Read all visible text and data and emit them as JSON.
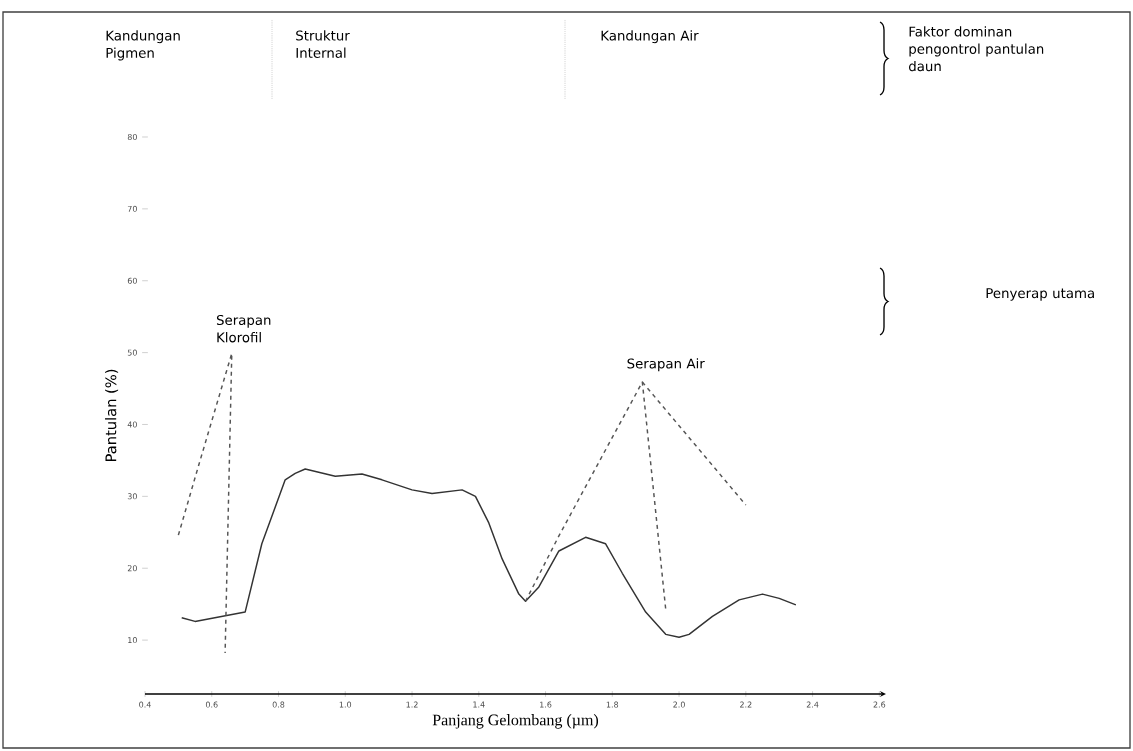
{
  "chart_data": {
    "type": "line",
    "xlabel": "Panjang Gelombang (µm)",
    "ylabel": "Pantulan (%)",
    "xlim": [
      0.4,
      2.62
    ],
    "ylim": [
      2.5,
      80
    ],
    "xticks": [
      0.4,
      0.6,
      0.8,
      {
        "value": 1.0,
        "label": "1.0"
      },
      1.2,
      1.4,
      1.6,
      1.8,
      {
        "value": 2.0,
        "label": "2.0"
      },
      2.2,
      2.4,
      2.6
    ],
    "yticks": [
      10,
      20,
      30,
      40,
      50,
      60,
      70,
      80
    ],
    "annotations": [
      "Kandungan Pigmen",
      "Struktur Internal",
      "Kandungan Air",
      "Faktor dominan pengontrol pantulan daun",
      {
        "text": "Serapan Klorofil",
        "x": 0.66,
        "y": 49.9
      },
      {
        "text": "Serapan Air",
        "x": 1.89,
        "y": 45.9
      },
      "Penyerap utama"
    ],
    "series": [
      {
        "color": "#333333",
        "line_style": "solid",
        "x": [
          0.51,
          0.55,
          0.7,
          0.75,
          0.82,
          0.85,
          0.88,
          0.97,
          1.05,
          1.11,
          1.2,
          1.26,
          1.35,
          1.39,
          1.43,
          1.47,
          1.52,
          1.54,
          1.58,
          1.64,
          1.72,
          1.78,
          1.83,
          1.9,
          1.96,
          2.0,
          2.03,
          2.1,
          2.18,
          2.25,
          2.3,
          2.35
        ],
        "values": [
          13.1,
          12.6,
          13.9,
          23.4,
          32.3,
          33.2,
          33.8,
          32.8,
          33.1,
          32.3,
          30.9,
          30.4,
          30.9,
          30.0,
          26.3,
          21.3,
          16.4,
          15.4,
          17.4,
          22.4,
          24.3,
          23.4,
          19.3,
          13.9,
          10.8,
          10.4,
          10.8,
          13.3,
          15.6,
          16.4,
          15.8,
          14.9
        ]
      },
      {
        "color": "#555555",
        "line_style": "dashed",
        "x": [
          0.5,
          0.56,
          0.66,
          0.64
        ],
        "values": [
          24.6,
          34.2,
          49.9,
          8.2
        ]
      },
      {
        "color": "#555555",
        "line_style": "dashed",
        "x": [
          1.54,
          1.64,
          1.89,
          1.96
        ],
        "values": [
          15.4,
          24.5,
          45.9,
          14.3
        ]
      },
      {
        "color": "#555555",
        "line_style": "dashed",
        "x": [
          1.89,
          2.2
        ],
        "values": [
          45.9,
          28.8
        ]
      }
    ]
  }
}
